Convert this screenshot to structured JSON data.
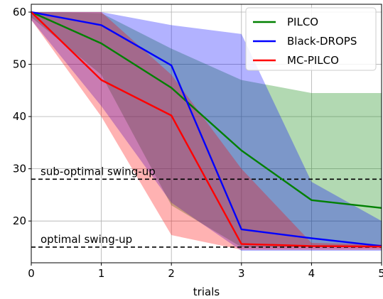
{
  "chart_data": {
    "type": "line",
    "title": "",
    "xlabel": "trials",
    "ylabel": "",
    "x": [
      0,
      1,
      2,
      3,
      4,
      5
    ],
    "xlim": [
      0,
      5
    ],
    "ylim": [
      12,
      61.5
    ],
    "xticks": [
      "0",
      "1",
      "2",
      "3",
      "4",
      "5"
    ],
    "yticks": [
      "20",
      "30",
      "40",
      "50",
      "60"
    ],
    "grid": true,
    "legend_position": "top-right",
    "series": [
      {
        "name": "PILCO",
        "color": "#008000",
        "mean": [
          60,
          54,
          45.5,
          33.5,
          24,
          22.5
        ],
        "upper": [
          60,
          59.8,
          53,
          47,
          44.5,
          44.5
        ],
        "lower": [
          59,
          48,
          23,
          15,
          15,
          15
        ]
      },
      {
        "name": "Black-DROPS",
        "color": "#0000ff",
        "mean": [
          60,
          57.5,
          49.8,
          18.4,
          16.7,
          15.2
        ],
        "upper": [
          60,
          60,
          57.5,
          55.8,
          27.5,
          20
        ],
        "lower": [
          58.5,
          42,
          23.5,
          14.3,
          14.3,
          14.3
        ]
      },
      {
        "name": "MC-PILCO",
        "color": "#ff0000",
        "mean": [
          60,
          47,
          40.2,
          15.6,
          15.2,
          15.1
        ],
        "upper": [
          60,
          60,
          48,
          30,
          15.8,
          15.5
        ],
        "lower": [
          58.5,
          40,
          17.3,
          14.5,
          14.5,
          14.5
        ]
      }
    ],
    "reference_lines": [
      {
        "label": "sub-optimal swing-up",
        "y": 28
      },
      {
        "label": "optimal swing-up",
        "y": 15
      }
    ]
  }
}
